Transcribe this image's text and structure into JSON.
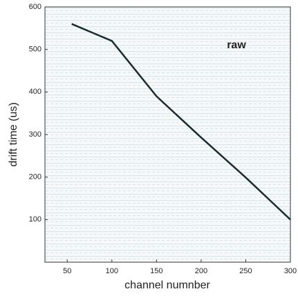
{
  "chart_data": {
    "type": "line",
    "xlabel": "channel numnber",
    "ylabel": "drift time (us)",
    "annotation": "raw",
    "x": [
      55,
      100,
      150,
      200,
      250,
      300
    ],
    "series": [
      {
        "name": null,
        "color": "#1a2a30",
        "values": [
          560,
          520,
          390,
          293,
          199,
          100
        ]
      }
    ],
    "xlim": [
      25,
      300
    ],
    "ylim": [
      0,
      600
    ],
    "xticks": [
      50,
      100,
      150,
      200,
      250,
      300
    ],
    "yticks": [
      100,
      200,
      300,
      400,
      500,
      600
    ]
  }
}
